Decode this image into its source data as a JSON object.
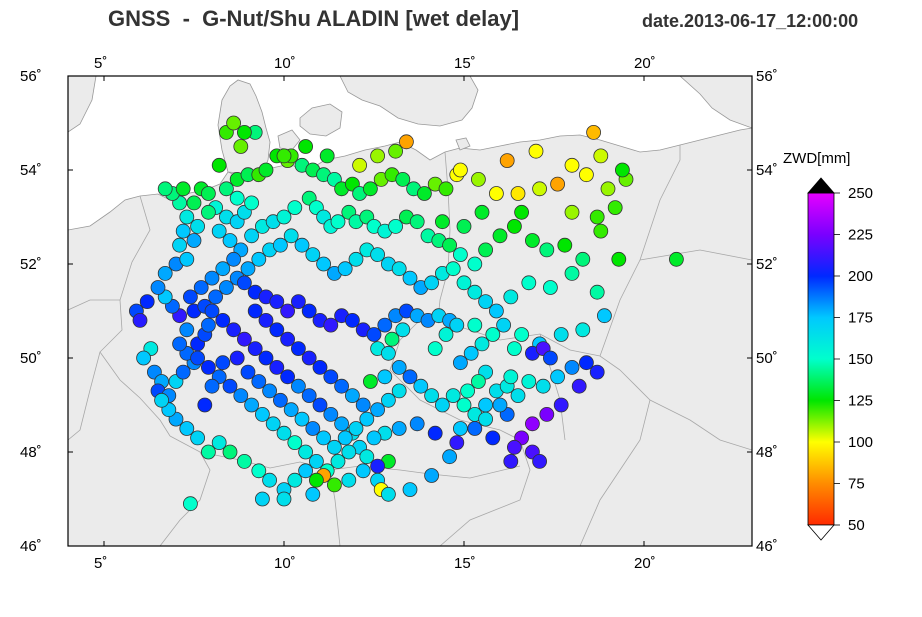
{
  "title": "GNSS  -  G-Nut/Shu ALADIN [wet delay]",
  "date": "date.2013-06-17_12:00:00",
  "map": {
    "lon_ticks": [
      "5˚",
      "10˚",
      "15˚",
      "20˚"
    ],
    "lat_ticks": [
      "46˚",
      "48˚",
      "50˚",
      "52˚",
      "54˚",
      "56˚"
    ],
    "lon_range": [
      4,
      23
    ],
    "lat_range": [
      46,
      56
    ],
    "land_color": "#ebebeb",
    "sea_color": "#ffffff",
    "border_color": "#999999"
  },
  "colorbar": {
    "title": "ZWD[mm]",
    "ticks": [
      "250",
      "225",
      "200",
      "175",
      "150",
      "125",
      "100",
      "75",
      "50"
    ],
    "tick_values": [
      250,
      225,
      200,
      175,
      150,
      125,
      100,
      75,
      50
    ],
    "stops": [
      "#ff2a00",
      "#ff8c00",
      "#ffff00",
      "#00e600",
      "#00ffcc",
      "#00c8ff",
      "#0028ff",
      "#7a00ff",
      "#e600ff"
    ],
    "range": [
      50,
      250
    ]
  },
  "stations": [
    [
      5.9,
      51.0,
      195
    ],
    [
      6.2,
      51.2,
      200
    ],
    [
      6.0,
      50.8,
      208
    ],
    [
      6.3,
      50.2,
      160
    ],
    [
      6.1,
      50.0,
      175
    ],
    [
      6.4,
      49.7,
      185
    ],
    [
      6.6,
      49.5,
      180
    ],
    [
      6.5,
      49.3,
      195
    ],
    [
      6.8,
      49.2,
      185
    ],
    [
      7.0,
      49.5,
      170
    ],
    [
      7.2,
      49.7,
      190
    ],
    [
      7.5,
      49.9,
      185
    ],
    [
      7.3,
      50.1,
      190
    ],
    [
      7.6,
      50.3,
      200
    ],
    [
      7.8,
      50.5,
      195
    ],
    [
      7.9,
      50.7,
      190
    ],
    [
      7.1,
      50.9,
      210
    ],
    [
      6.9,
      51.1,
      190
    ],
    [
      6.7,
      51.3,
      175
    ],
    [
      6.5,
      51.5,
      185
    ],
    [
      6.7,
      51.8,
      180
    ],
    [
      7.0,
      52.0,
      185
    ],
    [
      7.3,
      52.1,
      175
    ],
    [
      7.1,
      52.4,
      170
    ],
    [
      7.5,
      52.5,
      180
    ],
    [
      7.2,
      52.7,
      175
    ],
    [
      7.6,
      52.8,
      165
    ],
    [
      7.3,
      53.0,
      160
    ],
    [
      7.1,
      53.3,
      145
    ],
    [
      7.5,
      53.3,
      135
    ],
    [
      7.7,
      53.6,
      130
    ],
    [
      7.9,
      53.5,
      135
    ],
    [
      8.1,
      53.2,
      155
    ],
    [
      8.4,
      53.0,
      165
    ],
    [
      8.7,
      52.9,
      170
    ],
    [
      8.9,
      53.1,
      165
    ],
    [
      9.1,
      53.3,
      150
    ],
    [
      8.7,
      53.4,
      150
    ],
    [
      8.4,
      53.6,
      140
    ],
    [
      8.7,
      53.8,
      130
    ],
    [
      9.0,
      53.9,
      135
    ],
    [
      9.3,
      53.9,
      120
    ],
    [
      9.5,
      54.0,
      130
    ],
    [
      9.8,
      54.3,
      125
    ],
    [
      10.1,
      54.2,
      115
    ],
    [
      10.2,
      54.3,
      120
    ],
    [
      10.5,
      54.1,
      140
    ],
    [
      10.8,
      54.0,
      135
    ],
    [
      11.1,
      53.9,
      140
    ],
    [
      11.4,
      53.8,
      145
    ],
    [
      11.6,
      53.6,
      130
    ],
    [
      11.9,
      53.7,
      125
    ],
    [
      12.1,
      53.5,
      140
    ],
    [
      12.4,
      53.6,
      130
    ],
    [
      12.7,
      53.8,
      115
    ],
    [
      13.0,
      53.9,
      120
    ],
    [
      13.3,
      53.8,
      135
    ],
    [
      13.6,
      53.6,
      140
    ],
    [
      13.9,
      53.5,
      130
    ],
    [
      14.2,
      53.7,
      115
    ],
    [
      14.5,
      53.6,
      120
    ],
    [
      14.8,
      53.9,
      100
    ],
    [
      15.4,
      53.8,
      110
    ],
    [
      15.9,
      53.5,
      100
    ],
    [
      16.5,
      53.5,
      95
    ],
    [
      17.1,
      53.6,
      105
    ],
    [
      17.6,
      53.7,
      80
    ],
    [
      18.4,
      53.9,
      100
    ],
    [
      19.0,
      53.6,
      110
    ],
    [
      19.5,
      53.8,
      115
    ],
    [
      19.4,
      54.0,
      125
    ],
    [
      18.8,
      54.3,
      105
    ],
    [
      18.6,
      54.8,
      85
    ],
    [
      18.0,
      54.1,
      100
    ],
    [
      17.0,
      54.4,
      100
    ],
    [
      16.2,
      54.2,
      80
    ],
    [
      14.9,
      54.0,
      100
    ],
    [
      13.4,
      54.6,
      80
    ],
    [
      13.1,
      54.4,
      115
    ],
    [
      12.6,
      54.3,
      110
    ],
    [
      12.1,
      54.1,
      105
    ],
    [
      11.2,
      54.3,
      130
    ],
    [
      10.6,
      54.5,
      125
    ],
    [
      10.0,
      54.3,
      120
    ],
    [
      9.2,
      54.8,
      140
    ],
    [
      8.9,
      54.8,
      125
    ],
    [
      8.4,
      54.8,
      120
    ],
    [
      8.6,
      55.0,
      115
    ],
    [
      8.8,
      54.5,
      115
    ],
    [
      8.2,
      54.1,
      125
    ],
    [
      6.9,
      53.5,
      140
    ],
    [
      6.7,
      53.6,
      140
    ],
    [
      7.2,
      53.6,
      130
    ],
    [
      7.9,
      53.1,
      140
    ],
    [
      8.2,
      52.7,
      170
    ],
    [
      8.5,
      52.5,
      175
    ],
    [
      8.8,
      52.3,
      180
    ],
    [
      9.1,
      52.6,
      170
    ],
    [
      9.4,
      52.8,
      160
    ],
    [
      9.7,
      52.9,
      165
    ],
    [
      10.0,
      53.0,
      155
    ],
    [
      10.3,
      53.2,
      150
    ],
    [
      10.7,
      53.4,
      140
    ],
    [
      10.9,
      53.2,
      150
    ],
    [
      11.1,
      53.0,
      160
    ],
    [
      11.3,
      52.8,
      155
    ],
    [
      11.5,
      52.9,
      150
    ],
    [
      11.8,
      53.1,
      140
    ],
    [
      12.0,
      52.9,
      145
    ],
    [
      12.3,
      53.0,
      140
    ],
    [
      12.5,
      52.8,
      150
    ],
    [
      12.8,
      52.7,
      155
    ],
    [
      13.1,
      52.8,
      150
    ],
    [
      13.4,
      53.0,
      135
    ],
    [
      13.7,
      52.9,
      140
    ],
    [
      14.0,
      52.6,
      145
    ],
    [
      14.3,
      52.5,
      140
    ],
    [
      14.6,
      52.4,
      135
    ],
    [
      14.9,
      52.2,
      150
    ],
    [
      15.3,
      52.0,
      150
    ],
    [
      15.6,
      52.3,
      135
    ],
    [
      16.0,
      52.6,
      130
    ],
    [
      16.4,
      52.8,
      125
    ],
    [
      16.9,
      52.5,
      130
    ],
    [
      17.3,
      52.3,
      140
    ],
    [
      17.8,
      52.4,
      125
    ],
    [
      18.3,
      52.1,
      140
    ],
    [
      18.8,
      52.7,
      120
    ],
    [
      19.3,
      52.1,
      125
    ],
    [
      20.9,
      52.1,
      130
    ],
    [
      19.2,
      53.2,
      120
    ],
    [
      18.7,
      53.0,
      120
    ],
    [
      18.0,
      53.1,
      110
    ],
    [
      16.6,
      53.1,
      125
    ],
    [
      15.5,
      53.1,
      130
    ],
    [
      15.0,
      52.8,
      135
    ],
    [
      14.4,
      52.9,
      130
    ],
    [
      8.6,
      52.1,
      185
    ],
    [
      8.3,
      51.9,
      180
    ],
    [
      8.0,
      51.7,
      185
    ],
    [
      7.7,
      51.5,
      190
    ],
    [
      7.4,
      51.3,
      195
    ],
    [
      7.5,
      51.0,
      200
    ],
    [
      7.8,
      51.1,
      195
    ],
    [
      8.1,
      51.3,
      190
    ],
    [
      8.4,
      51.5,
      185
    ],
    [
      8.7,
      51.7,
      185
    ],
    [
      9.0,
      51.9,
      180
    ],
    [
      9.3,
      52.1,
      175
    ],
    [
      9.6,
      52.3,
      170
    ],
    [
      9.9,
      52.4,
      175
    ],
    [
      10.2,
      52.6,
      165
    ],
    [
      10.5,
      52.4,
      175
    ],
    [
      10.8,
      52.2,
      170
    ],
    [
      11.1,
      52.0,
      175
    ],
    [
      11.4,
      51.8,
      180
    ],
    [
      11.7,
      51.9,
      175
    ],
    [
      12.0,
      52.1,
      165
    ],
    [
      12.3,
      52.3,
      160
    ],
    [
      12.6,
      52.2,
      165
    ],
    [
      12.9,
      52.0,
      170
    ],
    [
      13.2,
      51.9,
      165
    ],
    [
      13.5,
      51.7,
      175
    ],
    [
      13.8,
      51.5,
      180
    ],
    [
      14.1,
      51.6,
      170
    ],
    [
      14.4,
      51.8,
      160
    ],
    [
      14.7,
      51.9,
      150
    ],
    [
      15.0,
      51.6,
      155
    ],
    [
      15.3,
      51.4,
      160
    ],
    [
      15.6,
      51.2,
      170
    ],
    [
      15.9,
      51.0,
      175
    ],
    [
      16.3,
      51.3,
      160
    ],
    [
      16.8,
      51.6,
      150
    ],
    [
      17.4,
      51.5,
      150
    ],
    [
      18.0,
      51.8,
      145
    ],
    [
      18.7,
      51.4,
      145
    ],
    [
      18.9,
      50.9,
      175
    ],
    [
      18.3,
      50.6,
      160
    ],
    [
      17.7,
      50.5,
      165
    ],
    [
      17.1,
      50.3,
      175
    ],
    [
      16.6,
      50.5,
      150
    ],
    [
      16.1,
      50.7,
      170
    ],
    [
      15.8,
      50.5,
      150
    ],
    [
      15.5,
      50.3,
      160
    ],
    [
      15.2,
      50.1,
      175
    ],
    [
      14.9,
      49.9,
      180
    ],
    [
      8.9,
      51.6,
      195
    ],
    [
      9.2,
      51.4,
      200
    ],
    [
      9.5,
      51.3,
      205
    ],
    [
      9.8,
      51.2,
      205
    ],
    [
      10.1,
      51.0,
      210
    ],
    [
      10.4,
      51.2,
      205
    ],
    [
      10.7,
      51.0,
      200
    ],
    [
      11.0,
      50.8,
      205
    ],
    [
      11.3,
      50.7,
      210
    ],
    [
      11.6,
      50.9,
      205
    ],
    [
      11.9,
      50.8,
      200
    ],
    [
      12.2,
      50.6,
      205
    ],
    [
      12.5,
      50.5,
      195
    ],
    [
      12.8,
      50.7,
      190
    ],
    [
      13.1,
      50.9,
      185
    ],
    [
      13.4,
      51.0,
      195
    ],
    [
      13.7,
      50.9,
      180
    ],
    [
      14.0,
      50.8,
      185
    ],
    [
      14.3,
      50.9,
      170
    ],
    [
      14.6,
      50.8,
      180
    ],
    [
      12.6,
      50.2,
      160
    ],
    [
      12.9,
      50.1,
      165
    ],
    [
      13.2,
      49.8,
      180
    ],
    [
      13.5,
      49.6,
      190
    ],
    [
      13.8,
      49.4,
      175
    ],
    [
      14.1,
      49.2,
      165
    ],
    [
      14.4,
      49.0,
      170
    ],
    [
      14.7,
      49.2,
      160
    ],
    [
      15.0,
      49.0,
      150
    ],
    [
      15.3,
      48.8,
      160
    ],
    [
      15.6,
      49.0,
      175
    ],
    [
      15.9,
      49.3,
      165
    ],
    [
      16.2,
      49.4,
      160
    ],
    [
      16.5,
      49.2,
      165
    ],
    [
      16.8,
      49.5,
      155
    ],
    [
      17.2,
      49.4,
      165
    ],
    [
      17.6,
      49.6,
      175
    ],
    [
      18.0,
      49.8,
      185
    ],
    [
      18.4,
      49.9,
      200
    ],
    [
      18.7,
      49.7,
      205
    ],
    [
      18.2,
      49.4,
      210
    ],
    [
      17.7,
      49.0,
      210
    ],
    [
      17.3,
      48.8,
      225
    ],
    [
      16.9,
      48.6,
      230
    ],
    [
      16.6,
      48.3,
      225
    ],
    [
      16.4,
      48.1,
      215
    ],
    [
      16.3,
      47.8,
      210
    ],
    [
      16.9,
      48.0,
      215
    ],
    [
      17.1,
      47.8,
      210
    ],
    [
      15.8,
      48.3,
      200
    ],
    [
      15.3,
      48.5,
      190
    ],
    [
      14.8,
      48.2,
      210
    ],
    [
      14.2,
      48.4,
      200
    ],
    [
      13.7,
      48.6,
      185
    ],
    [
      13.2,
      48.5,
      180
    ],
    [
      12.8,
      48.4,
      165
    ],
    [
      12.5,
      48.3,
      175
    ],
    [
      12.1,
      48.1,
      170
    ],
    [
      11.8,
      48.0,
      165
    ],
    [
      11.5,
      47.8,
      160
    ],
    [
      11.2,
      47.6,
      150
    ],
    [
      11.1,
      47.5,
      80
    ],
    [
      10.9,
      47.4,
      125
    ],
    [
      11.4,
      47.3,
      120
    ],
    [
      11.8,
      47.4,
      165
    ],
    [
      12.2,
      47.6,
      175
    ],
    [
      12.6,
      47.4,
      170
    ],
    [
      12.7,
      47.2,
      100
    ],
    [
      12.9,
      47.1,
      165
    ],
    [
      13.5,
      47.2,
      175
    ],
    [
      14.1,
      47.5,
      180
    ],
    [
      14.6,
      47.9,
      180
    ],
    [
      14.9,
      48.5,
      175
    ],
    [
      12.9,
      47.8,
      130
    ],
    [
      12.6,
      47.7,
      205
    ],
    [
      12.3,
      47.9,
      160
    ],
    [
      11.9,
      48.4,
      165
    ],
    [
      11.6,
      48.6,
      180
    ],
    [
      11.3,
      48.8,
      185
    ],
    [
      11.0,
      49.0,
      195
    ],
    [
      10.7,
      49.2,
      190
    ],
    [
      10.4,
      49.4,
      185
    ],
    [
      10.1,
      49.6,
      200
    ],
    [
      9.8,
      49.8,
      205
    ],
    [
      9.5,
      50.0,
      200
    ],
    [
      9.2,
      50.2,
      205
    ],
    [
      8.9,
      50.4,
      210
    ],
    [
      8.6,
      50.6,
      205
    ],
    [
      8.3,
      50.8,
      200
    ],
    [
      8.0,
      51.0,
      195
    ],
    [
      7.1,
      50.3,
      190
    ],
    [
      7.3,
      50.6,
      185
    ],
    [
      7.6,
      50.0,
      195
    ],
    [
      7.9,
      49.8,
      200
    ],
    [
      8.2,
      49.6,
      190
    ],
    [
      8.5,
      49.4,
      195
    ],
    [
      8.8,
      49.2,
      185
    ],
    [
      9.1,
      49.0,
      180
    ],
    [
      9.4,
      48.8,
      175
    ],
    [
      9.7,
      48.6,
      170
    ],
    [
      10.0,
      48.4,
      165
    ],
    [
      10.3,
      48.2,
      150
    ],
    [
      10.6,
      48.0,
      160
    ],
    [
      10.9,
      47.8,
      170
    ],
    [
      10.6,
      47.6,
      175
    ],
    [
      10.3,
      47.4,
      160
    ],
    [
      10.0,
      47.2,
      170
    ],
    [
      9.6,
      47.4,
      165
    ],
    [
      9.3,
      47.6,
      150
    ],
    [
      8.9,
      47.8,
      145
    ],
    [
      8.5,
      48.0,
      140
    ],
    [
      8.2,
      48.2,
      160
    ],
    [
      7.9,
      48.0,
      145
    ],
    [
      7.6,
      48.3,
      170
    ],
    [
      7.3,
      48.5,
      175
    ],
    [
      7.0,
      48.7,
      180
    ],
    [
      6.8,
      48.9,
      175
    ],
    [
      6.6,
      49.1,
      170
    ],
    [
      7.4,
      46.9,
      150
    ],
    [
      9.4,
      47.0,
      170
    ],
    [
      10.0,
      47.0,
      165
    ],
    [
      10.8,
      47.1,
      175
    ],
    [
      7.8,
      49.0,
      200
    ],
    [
      8.0,
      49.4,
      190
    ],
    [
      8.3,
      49.9,
      195
    ],
    [
      8.7,
      50.0,
      205
    ],
    [
      9.0,
      49.7,
      195
    ],
    [
      9.3,
      49.5,
      190
    ],
    [
      9.6,
      49.3,
      185
    ],
    [
      9.9,
      49.1,
      190
    ],
    [
      10.2,
      48.9,
      180
    ],
    [
      10.5,
      48.7,
      175
    ],
    [
      10.8,
      48.5,
      185
    ],
    [
      11.1,
      48.3,
      175
    ],
    [
      11.4,
      48.1,
      170
    ],
    [
      11.7,
      48.3,
      175
    ],
    [
      12.0,
      48.5,
      170
    ],
    [
      12.3,
      48.7,
      175
    ],
    [
      12.6,
      48.9,
      180
    ],
    [
      12.9,
      49.1,
      170
    ],
    [
      13.2,
      49.3,
      165
    ],
    [
      12.2,
      49.0,
      185
    ],
    [
      11.9,
      49.2,
      180
    ],
    [
      11.6,
      49.4,
      190
    ],
    [
      11.3,
      49.6,
      195
    ],
    [
      11.0,
      49.8,
      200
    ],
    [
      10.7,
      50.0,
      205
    ],
    [
      10.4,
      50.2,
      200
    ],
    [
      10.1,
      50.4,
      205
    ],
    [
      9.8,
      50.6,
      200
    ],
    [
      9.5,
      50.8,
      205
    ],
    [
      9.2,
      51.0,
      200
    ],
    [
      12.4,
      49.5,
      130
    ],
    [
      12.8,
      49.6,
      175
    ],
    [
      13.0,
      50.4,
      140
    ],
    [
      13.3,
      50.6,
      165
    ],
    [
      14.2,
      50.2,
      150
    ],
    [
      14.5,
      50.5,
      155
    ],
    [
      14.8,
      50.7,
      170
    ],
    [
      15.3,
      50.7,
      150
    ],
    [
      16.4,
      50.2,
      150
    ],
    [
      16.9,
      50.1,
      205
    ],
    [
      17.2,
      50.2,
      215
    ],
    [
      17.4,
      50.0,
      195
    ],
    [
      15.6,
      49.7,
      165
    ],
    [
      15.4,
      49.5,
      145
    ],
    [
      15.1,
      49.3,
      150
    ],
    [
      16.2,
      48.8,
      190
    ],
    [
      15.6,
      48.7,
      165
    ],
    [
      16.0,
      49.0,
      180
    ],
    [
      16.3,
      49.6,
      155
    ]
  ]
}
